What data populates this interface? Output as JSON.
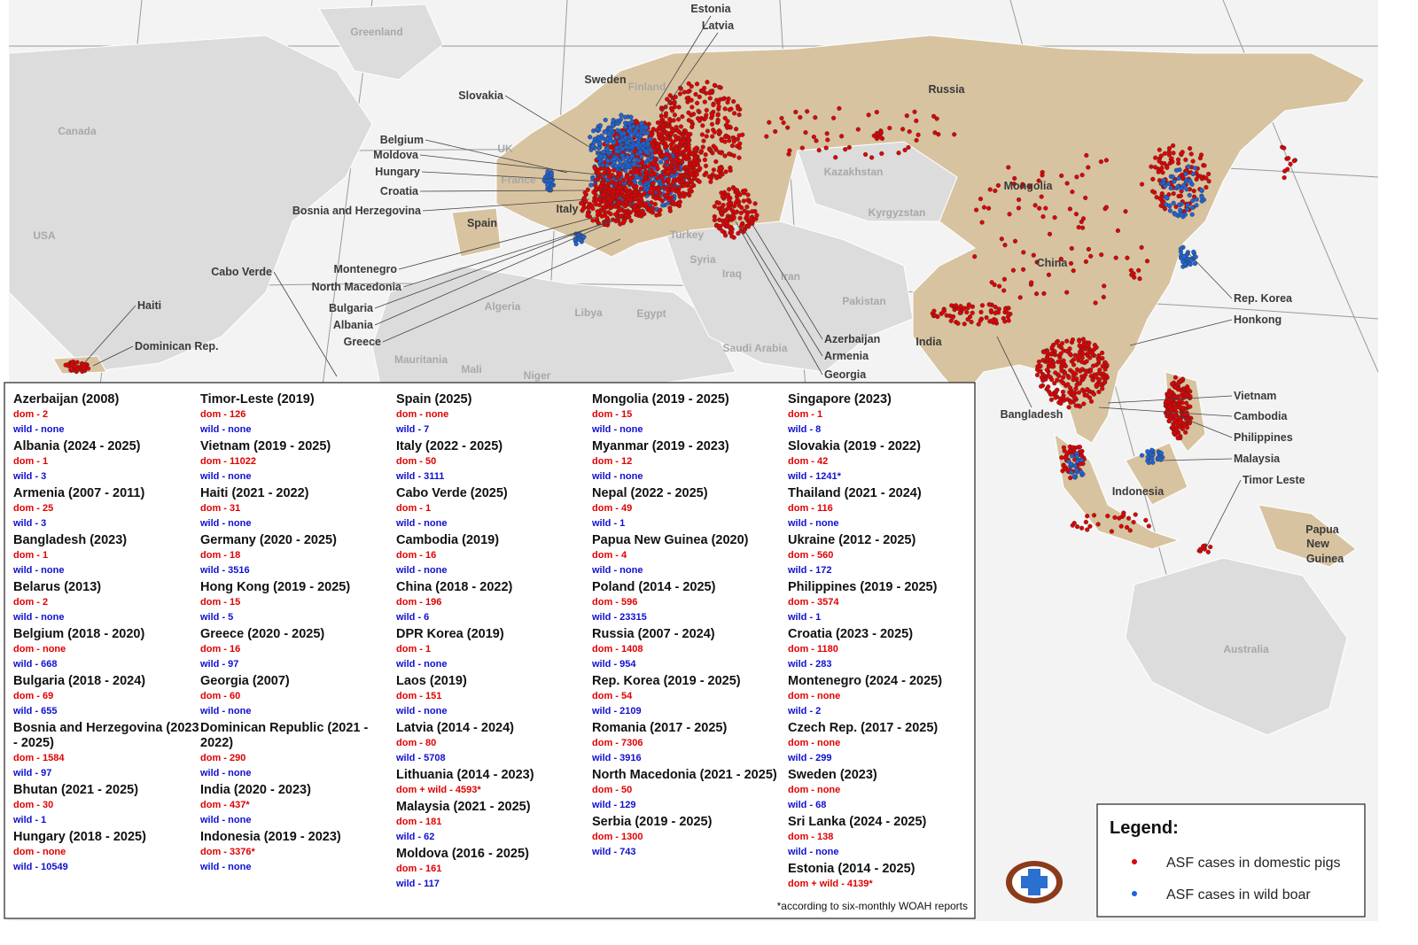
{
  "map": {
    "labels": [
      "Greenland",
      "Canada",
      "USA",
      "Finland",
      "UK",
      "France",
      "Kazakhstan",
      "Kyrgyzstan",
      "Turkey",
      "Syria",
      "Iraq",
      "Iran",
      "Pakistan",
      "Saudi Arabia",
      "Egypt",
      "Libya",
      "Algeria",
      "Mauritania",
      "Mali",
      "Niger",
      "Australia"
    ],
    "affected_labels": [
      "Sweden",
      "Russia",
      "Mongolia",
      "China",
      "India",
      "Spain",
      "Italy",
      "Indonesia",
      "Papua",
      "New",
      "Guinea"
    ],
    "callouts": [
      "Estonia",
      "Latvia",
      "Slovakia",
      "Belgium",
      "Moldova",
      "Hungary",
      "Croatia",
      "Bosnia and Herzegovina",
      "Montenegro",
      "North Macedonia",
      "Bulgaria",
      "Albania",
      "Greece",
      "Cabo Verde",
      "Haiti",
      "Dominican Rep.",
      "Rep. Korea",
      "Honkong",
      "Azerbaijan",
      "Armenia",
      "Georgia",
      "Vietnam",
      "Cambodia",
      "Philippines",
      "Malaysia",
      "Timor Leste",
      "Bangladesh"
    ],
    "domestic_color": "#e00000",
    "wild_color": "#1f64d6"
  },
  "table": {
    "dom_color": "#e00000",
    "wild_color": "#1010d0",
    "columns": [
      [
        {
          "name": "Azerbaijan (2008)",
          "lines": [
            "dom - 2",
            "wild - none"
          ]
        },
        {
          "name": "Albania (2024 - 2025)",
          "lines": [
            "dom - 1",
            "wild - 3"
          ]
        },
        {
          "name": "Armenia (2007 - 2011)",
          "lines": [
            "dom - 25",
            "wild - 3"
          ]
        },
        {
          "name": "Bangladesh (2023)",
          "lines": [
            "dom - 1",
            "wild - none"
          ]
        },
        {
          "name": "Belarus (2013)",
          "lines": [
            "dom - 2",
            "wild - none"
          ]
        },
        {
          "name": "Belgium (2018 - 2020)",
          "lines": [
            "dom - none",
            "wild - 668"
          ]
        },
        {
          "name": "Bulgaria (2018 - 2024)",
          "lines": [
            "dom - 69",
            "wild - 655"
          ]
        },
        {
          "name": "Bosnia and Herzegovina (2023 - 2025)",
          "lines": [
            "dom - 1584",
            "wild - 97"
          ]
        },
        {
          "name": "Bhutan (2021 - 2025)",
          "lines": [
            "dom - 30",
            "wild - 1"
          ]
        },
        {
          "name": "Hungary (2018 - 2025)",
          "lines": [
            "dom - none",
            "wild - 10549"
          ]
        }
      ],
      [
        {
          "name": "Timor-Leste (2019)",
          "lines": [
            "dom - 126",
            "wild - none"
          ]
        },
        {
          "name": "Vietnam (2019 - 2025)",
          "lines": [
            "dom - 11022",
            "wild - none"
          ]
        },
        {
          "name": "Haiti (2021 - 2022)",
          "lines": [
            "dom - 31",
            "wild - none"
          ]
        },
        {
          "name": "Germany (2020 - 2025)",
          "lines": [
            "dom - 18",
            "wild - 3516"
          ]
        },
        {
          "name": "Hong Kong (2019 - 2025)",
          "lines": [
            "dom - 15",
            "wild - 5"
          ]
        },
        {
          "name": "Greece (2020 - 2025)",
          "lines": [
            "dom - 16",
            "wild - 97"
          ]
        },
        {
          "name": "Georgia (2007)",
          "lines": [
            "dom - 60",
            "wild - none"
          ]
        },
        {
          "name": "Dominican Republic (2021 - 2022)",
          "lines": [
            "dom - 290",
            "wild - none"
          ]
        },
        {
          "name": "India (2020 - 2023)",
          "lines": [
            "dom - 437*",
            "wild - none"
          ]
        },
        {
          "name": "Indonesia (2019 - 2023)",
          "lines": [
            "dom - 3376*",
            "wild - none"
          ]
        }
      ],
      [
        {
          "name": "Spain (2025)",
          "lines": [
            "dom - none",
            "wild - 7"
          ]
        },
        {
          "name": "Italy (2022 - 2025)",
          "lines": [
            "dom - 50",
            "wild - 3111"
          ]
        },
        {
          "name": "Cabo Verde (2025)",
          "lines": [
            "dom - 1",
            "wild - none"
          ]
        },
        {
          "name": "Cambodia (2019)",
          "lines": [
            "dom - 16",
            "wild - none"
          ]
        },
        {
          "name": "China (2018 - 2022)",
          "lines": [
            "dom - 196",
            "wild - 6"
          ]
        },
        {
          "name": "DPR Korea (2019)",
          "lines": [
            "dom - 1",
            "wild - none"
          ]
        },
        {
          "name": "Laos (2019)",
          "lines": [
            "dom - 151",
            "wild - none"
          ]
        },
        {
          "name": "Latvia (2014 - 2024)",
          "lines": [
            "dom - 80",
            "wild - 5708"
          ]
        },
        {
          "name": "Lithuania (2014 - 2023)",
          "lines": [
            "dom + wild - 4593*"
          ]
        },
        {
          "name": "Malaysia (2021 - 2025)",
          "lines": [
            "dom - 181",
            "wild - 62"
          ]
        },
        {
          "name": "Moldova (2016 - 2025)",
          "lines": [
            "dom - 161",
            "wild - 117"
          ]
        }
      ],
      [
        {
          "name": "Mongolia (2019 - 2025)",
          "lines": [
            "dom - 15",
            "wild - none"
          ]
        },
        {
          "name": "Myanmar (2019 - 2023)",
          "lines": [
            "dom - 12",
            "wild - none"
          ]
        },
        {
          "name": "Nepal (2022 - 2025)",
          "lines": [
            "dom - 49",
            "wild - 1"
          ]
        },
        {
          "name": "Papua New Guinea (2020)",
          "lines": [
            "dom - 4",
            "wild - none"
          ]
        },
        {
          "name": "Poland (2014 - 2025)",
          "lines": [
            "dom - 596",
            "wild - 23315"
          ]
        },
        {
          "name": "Russia (2007 - 2024)",
          "lines": [
            "dom - 1408",
            "wild - 954"
          ]
        },
        {
          "name": "Rep. Korea (2019 - 2025)",
          "lines": [
            "dom - 54",
            "wild - 2109"
          ]
        },
        {
          "name": "Romania (2017 - 2025)",
          "lines": [
            "dom - 7306",
            "wild - 3916"
          ]
        },
        {
          "name": "North Macedonia (2021 - 2025)",
          "lines": [
            "dom - 50",
            "wild - 129"
          ]
        },
        {
          "name": "Serbia (2019 - 2025)",
          "lines": [
            "dom - 1300",
            "wild - 743"
          ]
        }
      ],
      [
        {
          "name": "Singapore (2023)",
          "lines": [
            "dom - 1",
            "wild - 8"
          ]
        },
        {
          "name": "Slovakia (2019 - 2022)",
          "lines": [
            "dom - 42",
            "wild - 1241*"
          ]
        },
        {
          "name": "Thailand (2021 - 2024)",
          "lines": [
            "dom - 116",
            "wild - none"
          ]
        },
        {
          "name": "Ukraine (2012 - 2025)",
          "lines": [
            "dom - 560",
            "wild - 172"
          ]
        },
        {
          "name": "Philippines (2019 - 2025)",
          "lines": [
            "dom - 3574",
            "wild - 1"
          ]
        },
        {
          "name": "Croatia (2023 - 2025)",
          "lines": [
            "dom - 1180",
            "wild - 283"
          ]
        },
        {
          "name": "Montenegro (2024 - 2025)",
          "lines": [
            "dom - none",
            "wild - 2"
          ]
        },
        {
          "name": "Czech Rep. (2017 - 2025)",
          "lines": [
            "dom - none",
            "wild - 299"
          ]
        },
        {
          "name": "Sweden (2023)",
          "lines": [
            "dom - none",
            "wild - 68"
          ]
        },
        {
          "name": "Sri Lanka (2024 - 2025)",
          "lines": [
            "dom - 138",
            "wild - none"
          ]
        },
        {
          "name": "Estonia (2014 - 2025)",
          "lines": [
            "dom + wild - 4139*"
          ]
        }
      ]
    ],
    "footnote": "*according to six-monthly WOAH reports"
  },
  "legend": {
    "title": "Legend:",
    "domestic": "ASF cases in domestic pigs",
    "wild": "ASF cases in wild boar"
  }
}
